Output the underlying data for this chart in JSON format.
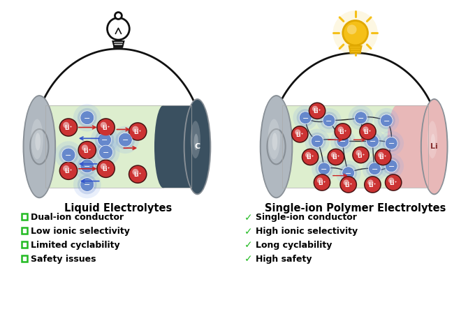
{
  "bg_color": "#ffffff",
  "left_title": "Liquid Electrolytes",
  "right_title": "Single-ion Polymer Electrolytes",
  "left_items": [
    "Dual-ion conductor",
    "Low ionic selectivity",
    "Limited cyclability",
    "Safety issues"
  ],
  "right_items": [
    "Single-ion conductor",
    "High ionic selectivity",
    "Long cyclability",
    "High safety"
  ],
  "symbol_color": "#22bb22",
  "title_fontsize": 10.5,
  "item_fontsize": 9,
  "electrolyte_color": "#ddeece",
  "cathode_color": "#3a5060",
  "anode_color": "#e8b8b8",
  "metal_light": "#d8dde2",
  "metal_mid": "#b0b8c0",
  "metal_dark": "#888f96",
  "wire_color": "#111111",
  "bulb_off_color": "#111111",
  "bulb_on_color": "#f5c018",
  "bulb_on_base": "#e0a800",
  "li_ion_color": "#cc3333",
  "anion_color": "#6688cc",
  "anion_glow": "#88aaee",
  "arrow_red": "#cc2222",
  "arrow_blue": "#3355cc",
  "polymer_line": "#222222"
}
